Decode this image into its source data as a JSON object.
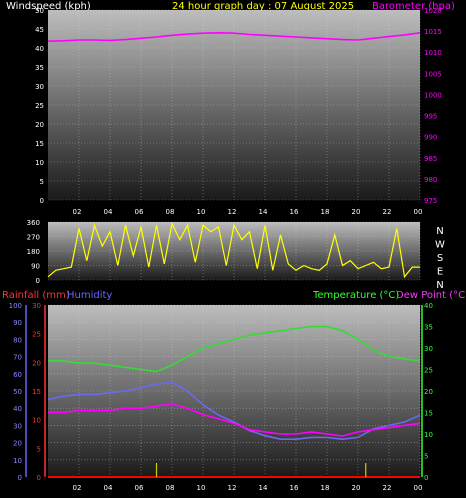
{
  "header": {
    "left": "Windspeed (kph)",
    "center": "24 hour graph day : 07 August 2025",
    "right": "Barometer (hpa)"
  },
  "mid_header": {
    "rain": "Rainfall (mm)",
    "humidity": "Humidity",
    "temperature": "Temperature (°C)",
    "dewpoint": "Dew Point (°C)"
  },
  "colors": {
    "windspeed": "#ffff00",
    "barometer": "#ff00ff",
    "direction": "#ffff00",
    "rain": "#ff0000",
    "humidity": "#6a6af0",
    "temperature": "#33dd33",
    "dewpoint": "#ff00ff",
    "rain_label": "#ff3333",
    "humidity_label": "#6666ff",
    "temp_label": "#33ff33",
    "dew_label": "#ff33ff",
    "axis_text": "#ffffff"
  },
  "x_ticks": [
    "02",
    "04",
    "06",
    "08",
    "10",
    "12",
    "14",
    "16",
    "18",
    "20",
    "22",
    "00"
  ],
  "chart_data": [
    {
      "type": "line",
      "x_unit": "hours",
      "x_range": [
        0,
        24
      ],
      "left_axis": {
        "label": "Windspeed (kph)",
        "range": [
          0,
          50
        ],
        "ticks": [
          "0",
          "5",
          "10",
          "15",
          "20",
          "25",
          "30",
          "35",
          "40",
          "45",
          "50"
        ]
      },
      "right_axis": {
        "label": "Barometer (hpa)",
        "range": [
          975,
          1020
        ],
        "ticks": [
          "975",
          "980",
          "985",
          "990",
          "995",
          "1000",
          "1005",
          "1010",
          "1015",
          "1020"
        ]
      },
      "series": [
        {
          "name": "Barometer (hpa)",
          "axis": "right",
          "x": [
            0,
            1,
            2,
            3,
            4,
            5,
            6,
            7,
            8,
            9,
            10,
            11,
            12,
            13,
            14,
            15,
            16,
            17,
            18,
            19,
            20,
            21,
            22,
            23,
            24
          ],
          "y": [
            1012.6,
            1012.7,
            1012.9,
            1012.9,
            1012.8,
            1013.0,
            1013.3,
            1013.6,
            1014.0,
            1014.3,
            1014.5,
            1014.6,
            1014.5,
            1014.2,
            1014.0,
            1013.8,
            1013.6,
            1013.4,
            1013.2,
            1013.0,
            1012.9,
            1013.3,
            1013.7,
            1014.1,
            1014.6
          ]
        }
      ],
      "grid": true
    },
    {
      "type": "line",
      "x_unit": "hours",
      "x_range": [
        0,
        24
      ],
      "left_axis": {
        "range": [
          0,
          360
        ],
        "ticks": [
          "0",
          "90",
          "180",
          "270",
          "360"
        ]
      },
      "right_axis_labels": [
        "N",
        "W",
        "S",
        "E",
        "N"
      ],
      "series": [
        {
          "name": "Wind direction",
          "x": [
            0.0,
            0.5,
            1.0,
            1.5,
            2.0,
            2.5,
            3.0,
            3.5,
            4.0,
            4.5,
            5.0,
            5.5,
            6.0,
            6.5,
            7.0,
            7.5,
            8.0,
            8.5,
            9.0,
            9.5,
            10.0,
            10.5,
            11.0,
            11.5,
            12.0,
            12.5,
            13.0,
            13.5,
            14.0,
            14.5,
            15.0,
            15.5,
            16.0,
            16.5,
            17.0,
            17.5,
            18.0,
            18.5,
            19.0,
            19.5,
            20.0,
            20.5,
            21.0,
            21.5,
            22.0,
            22.5,
            23.0,
            23.5,
            24.0
          ],
          "y": [
            20,
            60,
            70,
            80,
            320,
            120,
            340,
            210,
            300,
            90,
            340,
            150,
            330,
            80,
            340,
            100,
            350,
            250,
            340,
            110,
            340,
            300,
            330,
            90,
            340,
            250,
            300,
            70,
            340,
            60,
            280,
            100,
            60,
            90,
            70,
            60,
            100,
            280,
            90,
            120,
            70,
            90,
            110,
            70,
            80,
            320,
            20,
            80,
            80
          ]
        }
      ],
      "grid": true
    },
    {
      "type": "line",
      "x_unit": "hours",
      "x_range": [
        0,
        24
      ],
      "left_axes": [
        {
          "label": "Humidity",
          "range": [
            0,
            100
          ],
          "ticks": [
            "0",
            "10",
            "20",
            "30",
            "40",
            "50",
            "60",
            "70",
            "80",
            "90",
            "100"
          ]
        },
        {
          "label": "Rainfall (mm)",
          "range": [
            0,
            30
          ],
          "ticks": [
            "0",
            "5",
            "10",
            "15",
            "20",
            "25",
            "30"
          ]
        }
      ],
      "right_axis": {
        "label": "Temperature (°C)",
        "range": [
          0,
          40
        ],
        "ticks": [
          "0",
          "5",
          "10",
          "15",
          "20",
          "25",
          "30",
          "35",
          "40"
        ]
      },
      "series": [
        {
          "name": "Temperature (°C)",
          "axis": "right",
          "x": [
            0,
            1,
            2,
            3,
            4,
            5,
            6,
            7,
            8,
            9,
            10,
            11,
            12,
            13,
            14,
            15,
            16,
            17,
            18,
            19,
            20,
            21,
            22,
            23,
            24
          ],
          "y": [
            27,
            27,
            26.5,
            26.5,
            26,
            25.5,
            25,
            24.5,
            26,
            28,
            30,
            31,
            32,
            33,
            33.5,
            34,
            34.5,
            35,
            35,
            34,
            32,
            29.5,
            28,
            27.5,
            27
          ]
        },
        {
          "name": "Humidity",
          "axis": "left",
          "x": [
            0,
            1,
            2,
            3,
            4,
            5,
            6,
            7,
            8,
            9,
            10,
            11,
            12,
            13,
            14,
            15,
            16,
            17,
            18,
            19,
            20,
            21,
            22,
            23,
            24
          ],
          "y": [
            45,
            47,
            48,
            48,
            49,
            50,
            52,
            54,
            55,
            50,
            42,
            36,
            32,
            27,
            24,
            22,
            22,
            23,
            23,
            22,
            23,
            28,
            30,
            32,
            36
          ]
        },
        {
          "name": "Dew Point (°C)",
          "axis": "right",
          "x": [
            0,
            1,
            2,
            3,
            4,
            5,
            6,
            7,
            8,
            9,
            10,
            11,
            12,
            13,
            14,
            15,
            16,
            17,
            18,
            19,
            20,
            21,
            22,
            23,
            24
          ],
          "y": [
            15,
            15,
            15.5,
            15.5,
            15.5,
            16,
            16,
            16.5,
            17,
            16,
            14.5,
            13.5,
            12.5,
            11,
            10.5,
            10,
            10,
            10.5,
            10,
            9.5,
            10.5,
            11,
            11.5,
            12,
            12.5
          ]
        },
        {
          "name": "Rainfall (mm)",
          "axis": "rain",
          "x": [
            0,
            24
          ],
          "y": [
            0,
            0
          ]
        }
      ],
      "markers_x": [
        7.0,
        20.5
      ],
      "grid": true
    }
  ]
}
